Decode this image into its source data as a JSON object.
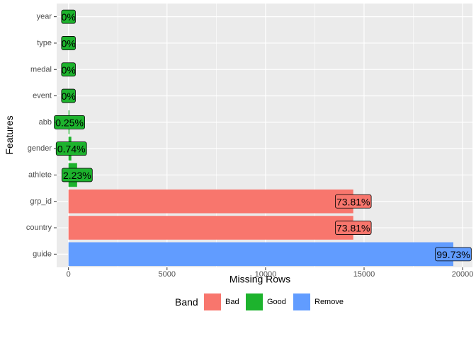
{
  "chart_data": {
    "type": "bar",
    "orientation": "horizontal",
    "categories": [
      "year",
      "type",
      "medal",
      "event",
      "abb",
      "gender",
      "athlete",
      "grp_id",
      "country",
      "guide"
    ],
    "values": [
      0,
      0,
      0,
      0,
      49,
      145,
      437,
      14452,
      14452,
      19529
    ],
    "labels": [
      "0%",
      "0%",
      "0%",
      "0%",
      "0.25%",
      "0.74%",
      "2.23%",
      "73.81%",
      "73.81%",
      "99.73%"
    ],
    "bands": [
      "Good",
      "Good",
      "Good",
      "Good",
      "Good",
      "Good",
      "Good",
      "Bad",
      "Bad",
      "Remove"
    ],
    "xlabel": "Missing Rows",
    "ylabel": "Features",
    "xlim": [
      -600,
      20500
    ],
    "xticks": [
      0,
      5000,
      10000,
      15000,
      20000
    ],
    "xtick_labels": [
      "0",
      "5000",
      "10000",
      "15000",
      "20000"
    ],
    "grid": true,
    "legend": {
      "title": "Band",
      "position": "bottom",
      "items": [
        {
          "name": "Bad",
          "color": "#F8766D"
        },
        {
          "name": "Good",
          "color": "#1DB32D"
        },
        {
          "name": "Remove",
          "color": "#619CFF"
        }
      ]
    },
    "colors": {
      "Bad": "#F8766D",
      "Good": "#1DB32D",
      "Remove": "#619CFF"
    }
  }
}
